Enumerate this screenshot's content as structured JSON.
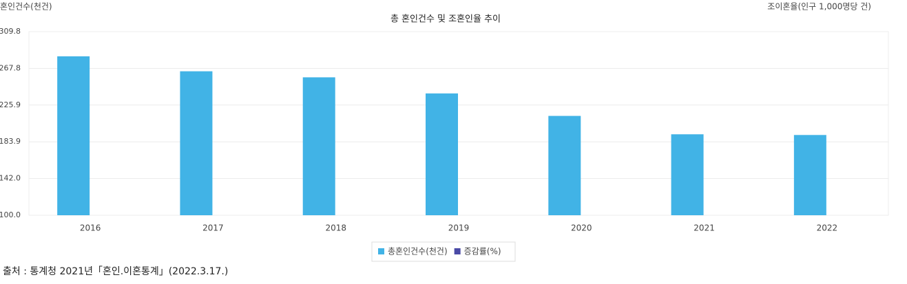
{
  "chart_data": {
    "type": "bar",
    "title": "총 혼인건수 및 조혼인율 추이",
    "y_label": "혼인건수(천건)",
    "y2_label": "조이혼율(인구 1,000명당 건)",
    "categories": [
      "2016",
      "2017",
      "2018",
      "2019",
      "2020",
      "2021",
      "2022"
    ],
    "series": [
      {
        "name": "총혼인건수(천건)",
        "color": "#41b3e6",
        "values": [
          281.6,
          264.5,
          257.6,
          239.2,
          213.5,
          192.5,
          191.7
        ]
      },
      {
        "name": "증감률(%)",
        "color": "#4a4aa6",
        "values": [
          null,
          null,
          null,
          null,
          null,
          null,
          null
        ]
      }
    ],
    "ylim": [
      100,
      309.8
    ],
    "yticks": [
      {
        "value": 100,
        "label": "100.0"
      },
      {
        "value": 142,
        "label": "142.0"
      },
      183.9,
      225.9,
      267.8,
      309.8
    ],
    "grid": true,
    "legend": "bottom",
    "source": "출처 : 통계청 2021년「혼인.이혼통계」(2022.3.17.)"
  }
}
